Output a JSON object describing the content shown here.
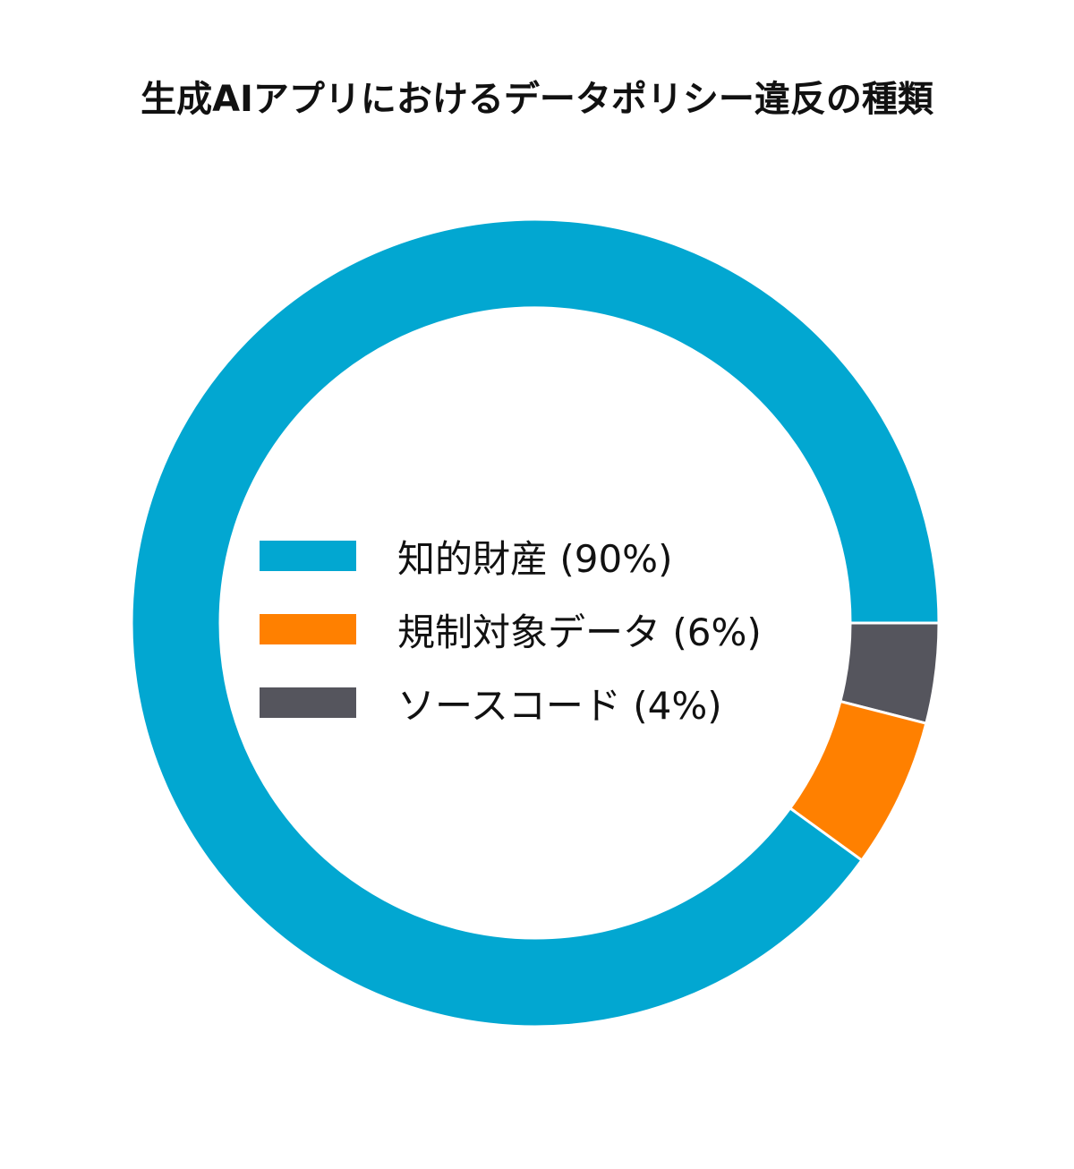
{
  "chart_data": {
    "type": "pie",
    "subtype": "donut",
    "title": "生成AIアプリにおけるデータポリシー違反の種類",
    "categories": [
      "知的財産",
      "規制対象データ",
      "ソースコード"
    ],
    "values": [
      90,
      6,
      4
    ],
    "unit": "%",
    "colors": [
      "#02a7d1",
      "#ff8000",
      "#55555d"
    ],
    "legend_position": "center",
    "legend": [
      {
        "label": "知的財産 (90%)",
        "color": "#02a7d1"
      },
      {
        "label": "規制対象データ (6%)",
        "color": "#ff8000"
      },
      {
        "label": "ソースコード (4%)",
        "color": "#55555d"
      }
    ]
  },
  "title": "生成AIアプリにおけるデータポリシー違反の種類"
}
